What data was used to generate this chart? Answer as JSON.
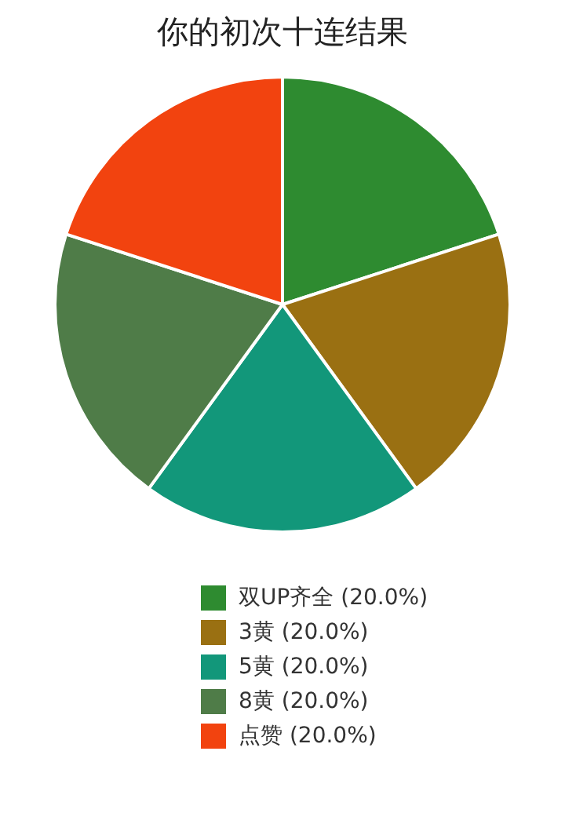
{
  "chart_data": {
    "type": "pie",
    "title": "你的初次十连结果",
    "categories": [
      "双UP齐全 (20.0%)",
      "3黄 (20.0%)",
      "5黄 (20.0%)",
      "8黄 (20.0%)",
      "点赞 (20.0%)"
    ],
    "values": [
      20,
      20,
      20,
      20,
      20
    ],
    "colors": [
      "#2e8b30",
      "#9a7012",
      "#12977a",
      "#4f7c48",
      "#f2430f"
    ],
    "legend": "bottom"
  }
}
